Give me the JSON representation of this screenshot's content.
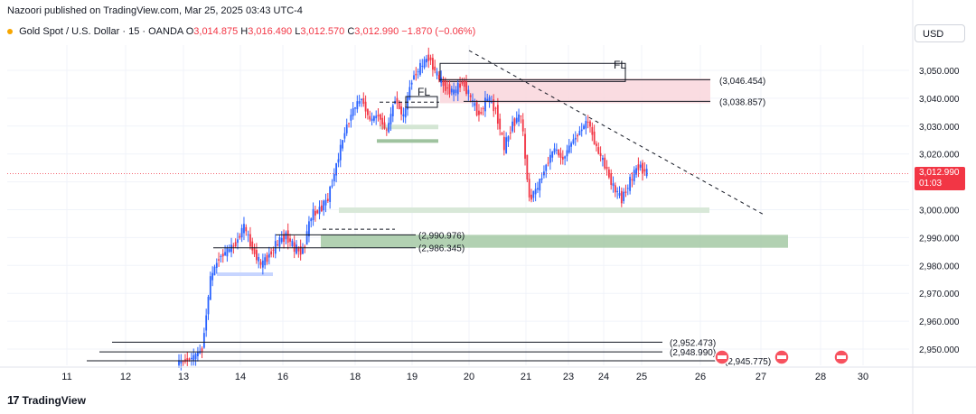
{
  "header": {
    "publisher_line": "Nazoori published on TradingView.com, Mar 25, 2025 03:43 UTC-4"
  },
  "symbol": {
    "name": "Gold Spot / U.S. Dollar · 15 · OANDA",
    "open_label": "O",
    "open": "3,014.875",
    "high_label": "H",
    "high": "3,016.490",
    "low_label": "L",
    "low": "3,012.570",
    "close_label": "C",
    "close": "3,012.990",
    "change": "−1.870 (−0.06%)"
  },
  "currency_button": "USD",
  "last_price": {
    "price": "3,012.990",
    "countdown": "01:03"
  },
  "footer": {
    "brand": "TradingView"
  },
  "colors": {
    "up": "#2962ff",
    "down": "#f23645",
    "accent_red": "#f23645",
    "zone_green": "#a5c9a5",
    "zone_pink": "#f9d6dc"
  },
  "chart_data": {
    "type": "candlestick",
    "title": "",
    "ylim": [
      2943,
      3058
    ],
    "y_ticks": [
      "3,050.000",
      "3,040.000",
      "3,030.000",
      "3,020.000",
      "3,010.000",
      "3,000.000",
      "2,990.000",
      "2,980.000",
      "2,970.000",
      "2,960.000",
      "2,950.000"
    ],
    "y_tick_values": [
      3050,
      3040,
      3030,
      3020,
      3010,
      3000,
      2990,
      2980,
      2970,
      2960,
      2950
    ],
    "x_ticks": [
      "11",
      "12",
      "13",
      "14",
      "16",
      "18",
      "19",
      "20",
      "21",
      "23",
      "24",
      "25",
      "26",
      "27",
      "28",
      "30"
    ],
    "series_path_closes": [
      2945,
      2946,
      2947,
      2950,
      2975,
      2983,
      2985,
      2988,
      2994,
      2986,
      2980,
      2984,
      2988,
      2991,
      2986,
      2985,
      2998,
      3000,
      3004,
      3016,
      3028,
      3036,
      3040,
      3032,
      3034,
      3028,
      3040,
      3033,
      3047,
      3051,
      3055,
      3048,
      3044,
      3042,
      3046,
      3040,
      3034,
      3040,
      3036,
      3022,
      3031,
      3034,
      3004,
      3008,
      3016,
      3022,
      3018,
      3024,
      3028,
      3032,
      3022,
      3016,
      3008,
      3004,
      3010,
      3016,
      3013
    ],
    "annotations": {
      "fl_labels": [
        "FL",
        "FL"
      ],
      "resistance_labels": [
        "(3,046.454)",
        "(3,038.857)"
      ],
      "support_labels": [
        "(2,990.976)",
        "(2,986.345)"
      ],
      "lower_labels": [
        "(2,952.473)",
        "(2,948.990)",
        "(2,945.775)"
      ],
      "resistance_values": [
        3046.454,
        3038.857
      ],
      "support_values": [
        2990.976,
        2986.345
      ],
      "lower_values": [
        2952.473,
        2948.99,
        2945.775
      ]
    }
  }
}
